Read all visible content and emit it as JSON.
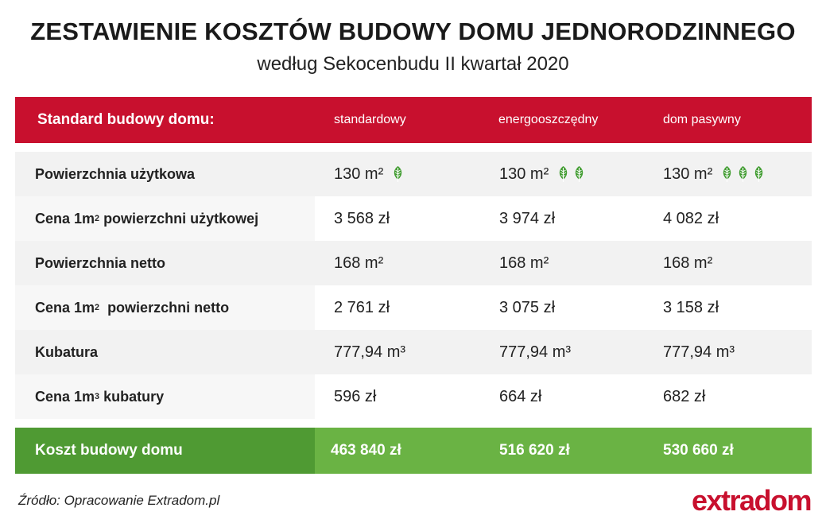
{
  "header": {
    "title": "ZESTAWIENIE KOSZTÓW BUDOWY DOMU JEDNORODZINNEGO",
    "subtitle": "według Sekocenbudu II kwartał 2020"
  },
  "colors": {
    "red": "#c8102e",
    "green_dark": "#4f9a33",
    "green": "#6ab344",
    "leaf": "#3f9b2f"
  },
  "table": {
    "columns": [
      "Standard budowy domu:",
      "standardowy",
      "energooszczędny",
      "dom pasywny"
    ],
    "rows": [
      {
        "label": "Powierzchnia użytkowa",
        "values": [
          "130 m²",
          "130 m²",
          "130 m²"
        ],
        "leaf_icons": [
          1,
          2,
          3
        ]
      },
      {
        "label_pre": "Cena 1m",
        "label_sup": "2",
        "label_post": " powierzchni użytkowej",
        "values": [
          "3 568 zł",
          "3 974 zł",
          "4 082 zł"
        ]
      },
      {
        "label": "Powierzchnia netto",
        "values": [
          "168 m²",
          "168 m²",
          "168 m²"
        ]
      },
      {
        "label_pre": "Cena 1m",
        "label_sup": "2",
        "label_post": "  powierzchni netto",
        "values": [
          "2 761 zł",
          "3 075 zł",
          "3 158 zł"
        ]
      },
      {
        "label": "Kubatura",
        "values": [
          "777,94 m³",
          "777,94 m³",
          "777,94 m³"
        ]
      },
      {
        "label_pre": "Cena 1m",
        "label_sup": "3",
        "label_post": " kubatury",
        "values": [
          "596 zł",
          "664 zł",
          "682 zł"
        ]
      }
    ],
    "total": {
      "label": "Koszt budowy domu",
      "values": [
        "463 840 zł",
        "516 620 zł",
        "530 660 zł"
      ]
    }
  },
  "footer": {
    "source": "Źródło: Opracowanie Extradom.pl",
    "logo": "extradom"
  }
}
